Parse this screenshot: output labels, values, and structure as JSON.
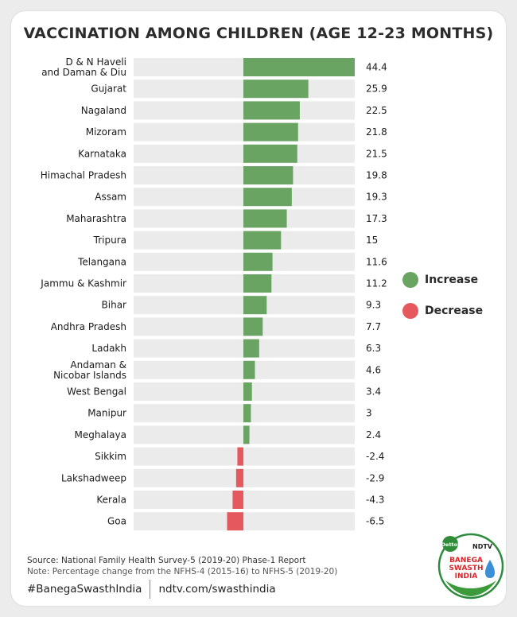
{
  "title": "VACCINATION AMONG CHILDREN (AGE 12-23 MONTHS)",
  "colors": {
    "increase": "#6aa463",
    "decrease": "#e5595e",
    "track": "#ebebeb"
  },
  "legend": {
    "increase_label": "Increase",
    "decrease_label": "Decrease"
  },
  "chart_data": {
    "type": "bar",
    "orientation": "horizontal",
    "title": "VACCINATION AMONG CHILDREN (AGE 12-23 MONTHS)",
    "categories": [
      [
        "D & N Haveli",
        "and Daman & Diu"
      ],
      [
        "Gujarat"
      ],
      [
        "Nagaland"
      ],
      [
        "Mizoram"
      ],
      [
        "Karnataka"
      ],
      [
        "Himachal Pradesh"
      ],
      [
        "Assam"
      ],
      [
        "Maharashtra"
      ],
      [
        "Tripura"
      ],
      [
        "Telangana"
      ],
      [
        "Jammu & Kashmir"
      ],
      [
        "Bihar"
      ],
      [
        "Andhra Pradesh"
      ],
      [
        "Ladakh"
      ],
      [
        "Andaman &",
        "Nicobar Islands"
      ],
      [
        "West Bengal"
      ],
      [
        "Manipur"
      ],
      [
        "Meghalaya"
      ],
      [
        "Sikkim"
      ],
      [
        "Lakshadweep"
      ],
      [
        "Kerala"
      ],
      [
        "Goa"
      ]
    ],
    "values": [
      44.4,
      25.9,
      22.5,
      21.8,
      21.5,
      19.8,
      19.3,
      17.3,
      15,
      11.6,
      11.2,
      9.3,
      7.7,
      6.3,
      4.6,
      3.4,
      3,
      2.4,
      -2.4,
      -2.9,
      -4.3,
      -6.5
    ],
    "value_labels": [
      "44.4",
      "25.9",
      "22.5",
      "21.8",
      "21.5",
      "19.8",
      "19.3",
      "17.3",
      "15",
      "11.6",
      "11.2",
      "9.3",
      "7.7",
      "6.3",
      "4.6",
      "3.4",
      "3",
      "2.4",
      "-2.4",
      "-2.9",
      "-4.3",
      "-6.5"
    ],
    "xlim": [
      -20,
      44.4
    ],
    "legend": [
      "Increase",
      "Decrease"
    ]
  },
  "source": "Source: National Family Health Survey-5 (2019-20) Phase-1 Report",
  "note": "Note: Percentage change from the NFHS-4 (2015-16) to NFHS-5 (2019-20)",
  "footer": {
    "hashtag": "#BanegaSwasthIndia",
    "url": "ndtv.com/swasthindia"
  },
  "logo": {
    "brand": "Dettol",
    "partner": "NDTV",
    "line1": "BANEGA",
    "line2": "SWASTH",
    "line3": "INDIA"
  }
}
